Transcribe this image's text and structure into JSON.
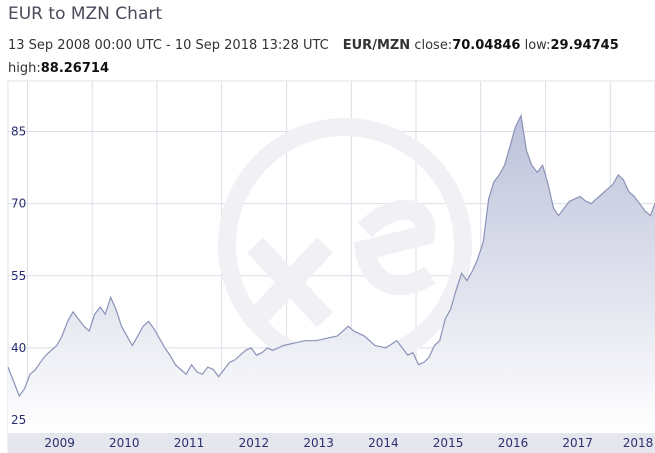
{
  "header": {
    "title": "EUR to MZN Chart",
    "date_range": "13 Sep 2008 00:00 UTC - 10 Sep 2018 13:28 UTC",
    "pair": "EUR/MZN",
    "close_label": "close:",
    "close_value": "70.04846",
    "low_label": "low:",
    "low_value": "29.94745",
    "high_label": "high:",
    "high_value": "88.26714"
  },
  "colors": {
    "line": "#8b93b8",
    "fill_top": "#bcc1d9",
    "fill_bottom": "#ffffff",
    "grid": "#dcdde6",
    "tick_text": "#2a2f6e",
    "x_axis_band": "#e5e6ee",
    "watermark": "#f0f0f4"
  },
  "watermark_icon": "xe-logo",
  "chart_data": {
    "type": "area",
    "title": "EUR to MZN Chart",
    "xlabel": "",
    "ylabel": "",
    "x_ticks": [
      "2009",
      "2010",
      "2011",
      "2012",
      "2013",
      "2014",
      "2015",
      "2016",
      "2017",
      "2018"
    ],
    "y_ticks": [
      25,
      40,
      55,
      70,
      85
    ],
    "xlim": [
      "2008-09-13",
      "2018-09-10"
    ],
    "ylim": [
      22.3,
      95.5
    ],
    "grid": true,
    "series": [
      {
        "x": [
          "2008-09-13",
          "2008-10-15",
          "2008-11-15",
          "2008-12-15",
          "2009-01-15",
          "2009-02-15",
          "2009-03-15",
          "2009-04-15",
          "2009-05-15",
          "2009-06-15",
          "2009-07-15",
          "2009-08-15",
          "2009-09-15",
          "2009-10-15",
          "2009-11-15",
          "2009-12-15",
          "2010-01-15",
          "2010-02-15",
          "2010-03-15",
          "2010-04-15",
          "2010-05-15",
          "2010-06-15",
          "2010-07-15",
          "2010-08-15",
          "2010-09-15",
          "2010-10-15",
          "2010-11-15",
          "2010-12-15",
          "2011-01-15",
          "2011-02-15",
          "2011-03-15",
          "2011-04-15",
          "2011-05-15",
          "2011-06-15",
          "2011-07-15",
          "2011-08-15",
          "2011-09-15",
          "2011-10-15",
          "2011-11-15",
          "2011-12-15",
          "2012-01-15",
          "2012-02-15",
          "2012-03-15",
          "2012-04-15",
          "2012-05-15",
          "2012-06-15",
          "2012-07-15",
          "2012-08-15",
          "2012-09-15",
          "2012-10-15",
          "2012-11-15",
          "2012-12-15",
          "2013-02-15",
          "2013-04-15",
          "2013-06-15",
          "2013-08-15",
          "2013-10-15",
          "2013-12-15",
          "2014-01-15",
          "2014-03-15",
          "2014-05-15",
          "2014-07-15",
          "2014-09-15",
          "2014-11-15",
          "2014-12-15",
          "2015-01-15",
          "2015-02-15",
          "2015-03-15",
          "2015-04-15",
          "2015-05-15",
          "2015-06-15",
          "2015-07-15",
          "2015-08-15",
          "2015-09-15",
          "2015-10-15",
          "2015-11-15",
          "2015-12-15",
          "2016-01-15",
          "2016-02-15",
          "2016-03-15",
          "2016-04-15",
          "2016-05-15",
          "2016-06-15",
          "2016-07-15",
          "2016-08-15",
          "2016-09-15",
          "2016-10-15",
          "2016-11-15",
          "2016-12-15",
          "2017-01-15",
          "2017-02-15",
          "2017-03-15",
          "2017-04-15",
          "2017-05-15",
          "2017-06-15",
          "2017-07-15",
          "2017-08-15",
          "2017-09-15",
          "2017-10-15",
          "2017-11-15",
          "2017-12-15",
          "2018-01-15",
          "2018-02-15",
          "2018-03-15",
          "2018-04-15",
          "2018-05-15",
          "2018-06-15",
          "2018-07-15",
          "2018-08-15",
          "2018-09-10"
        ],
        "values": [
          36.0,
          33.0,
          30.0,
          31.5,
          34.5,
          35.5,
          37.0,
          38.5,
          39.5,
          40.5,
          42.5,
          45.5,
          47.5,
          46.0,
          44.5,
          43.5,
          47.0,
          48.5,
          47.0,
          50.5,
          48.0,
          44.5,
          42.5,
          40.5,
          42.5,
          44.5,
          45.5,
          44.0,
          42.0,
          40.0,
          38.5,
          36.5,
          35.5,
          34.5,
          36.5,
          35.0,
          34.5,
          36.0,
          35.5,
          34.0,
          35.5,
          37.0,
          37.5,
          38.5,
          39.5,
          40.0,
          38.5,
          39.0,
          40.0,
          39.5,
          40.0,
          40.5,
          41.0,
          41.5,
          41.5,
          42.0,
          42.5,
          44.5,
          43.5,
          42.5,
          40.5,
          40.0,
          41.5,
          38.5,
          39.0,
          36.5,
          37.0,
          38.0,
          40.5,
          41.5,
          46.0,
          48.0,
          52.0,
          55.5,
          54.0,
          56.0,
          58.5,
          62.0,
          71.0,
          74.5,
          76.0,
          78.0,
          82.0,
          86.0,
          88.3,
          81.0,
          78.0,
          76.5,
          78.0,
          74.0,
          69.0,
          67.5,
          69.0,
          70.5,
          71.0,
          71.5,
          70.5,
          70.0,
          71.0,
          72.0,
          73.0,
          74.0,
          76.0,
          75.0,
          72.5,
          71.5,
          70.0,
          68.5,
          67.5,
          70.05
        ]
      }
    ]
  }
}
